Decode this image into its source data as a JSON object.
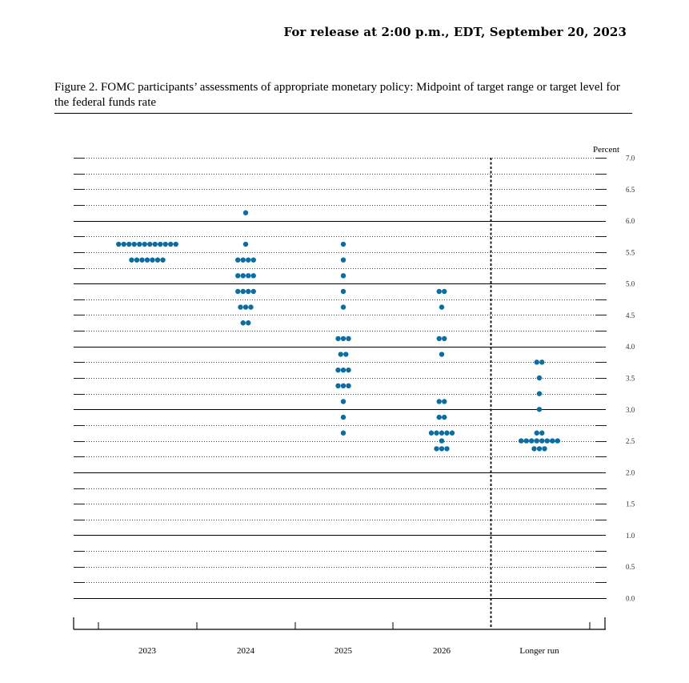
{
  "header": {
    "release": "For release at 2:00 p.m., EDT, September 20, 2023"
  },
  "figure": {
    "title": "Figure 2.  FOMC participants’ assessments of appropriate monetary policy:  Midpoint of target range or target level for the federal funds rate"
  },
  "chart_data": {
    "type": "scatter",
    "title": "",
    "ylabel": "Percent",
    "xlabel": "",
    "ylim": [
      0,
      7
    ],
    "y_ticks": [
      "0.0",
      "0.5",
      "1.0",
      "1.5",
      "2.0",
      "2.5",
      "3.0",
      "3.5",
      "4.0",
      "4.5",
      "5.0",
      "5.5",
      "6.0",
      "6.5",
      "7.0"
    ],
    "categories": [
      "2023",
      "2024",
      "2025",
      "2026",
      "Longer run"
    ],
    "grid": true,
    "dot_color": "#0c6ea0",
    "series": [
      {
        "category": "2023",
        "points": [
          {
            "y": 5.625,
            "count": 12
          },
          {
            "y": 5.375,
            "count": 7
          }
        ]
      },
      {
        "category": "2024",
        "points": [
          {
            "y": 6.125,
            "count": 1
          },
          {
            "y": 5.625,
            "count": 1
          },
          {
            "y": 5.375,
            "count": 4
          },
          {
            "y": 5.125,
            "count": 4
          },
          {
            "y": 4.875,
            "count": 4
          },
          {
            "y": 4.625,
            "count": 3
          },
          {
            "y": 4.375,
            "count": 2
          }
        ]
      },
      {
        "category": "2025",
        "points": [
          {
            "y": 5.625,
            "count": 1
          },
          {
            "y": 5.375,
            "count": 1
          },
          {
            "y": 5.125,
            "count": 1
          },
          {
            "y": 4.875,
            "count": 1
          },
          {
            "y": 4.625,
            "count": 1
          },
          {
            "y": 4.125,
            "count": 3
          },
          {
            "y": 3.875,
            "count": 2
          },
          {
            "y": 3.625,
            "count": 3
          },
          {
            "y": 3.375,
            "count": 3
          },
          {
            "y": 3.125,
            "count": 1
          },
          {
            "y": 2.875,
            "count": 1
          },
          {
            "y": 2.625,
            "count": 1
          }
        ]
      },
      {
        "category": "2026",
        "points": [
          {
            "y": 4.875,
            "count": 2
          },
          {
            "y": 4.625,
            "count": 1
          },
          {
            "y": 4.125,
            "count": 2
          },
          {
            "y": 3.875,
            "count": 1
          },
          {
            "y": 3.125,
            "count": 2
          },
          {
            "y": 2.875,
            "count": 2
          },
          {
            "y": 2.625,
            "count": 5
          },
          {
            "y": 2.5,
            "count": 1
          },
          {
            "y": 2.375,
            "count": 3
          }
        ]
      },
      {
        "category": "Longer run",
        "points": [
          {
            "y": 3.75,
            "count": 2
          },
          {
            "y": 3.5,
            "count": 1
          },
          {
            "y": 3.25,
            "count": 1
          },
          {
            "y": 3.0,
            "count": 1
          },
          {
            "y": 2.625,
            "count": 2
          },
          {
            "y": 2.5,
            "count": 8
          },
          {
            "y": 2.375,
            "count": 3
          }
        ]
      }
    ]
  }
}
